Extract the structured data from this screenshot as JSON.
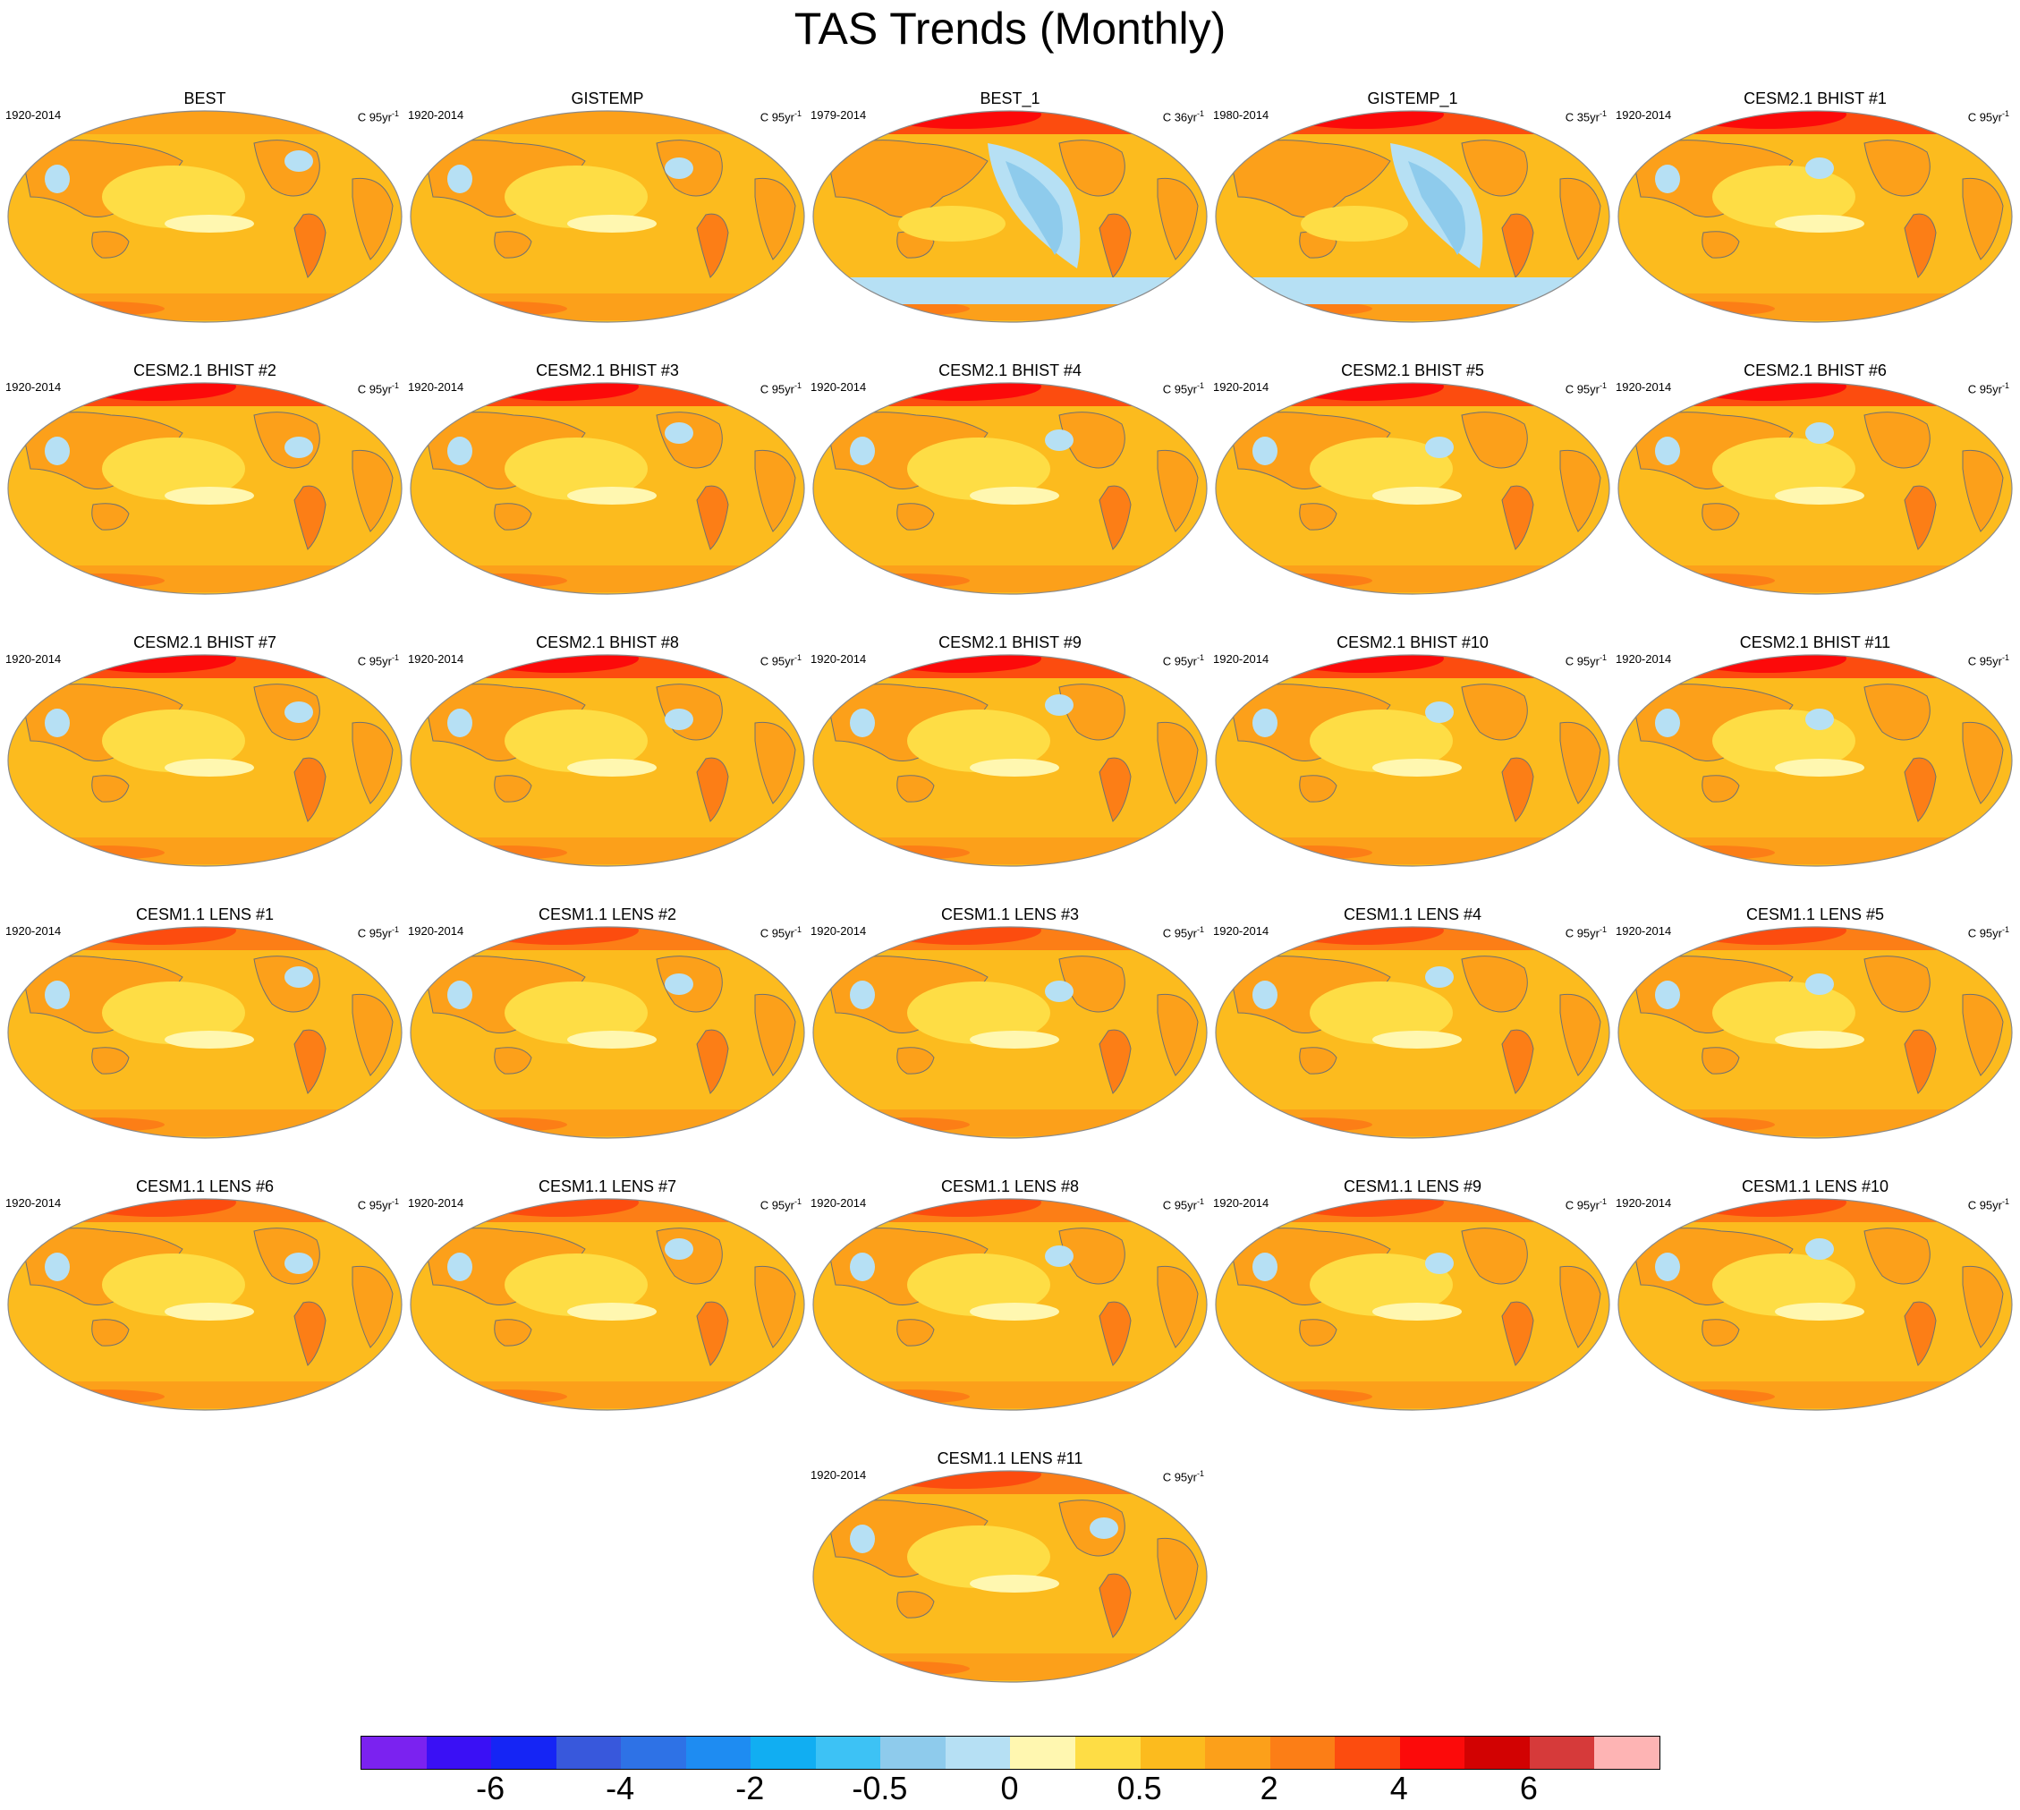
{
  "title": "TAS Trends (Monthly)",
  "panels": [
    {
      "name": "BEST",
      "period": "1920-2014",
      "units": "C 95yr",
      "units_exp": "-1",
      "style": "obs"
    },
    {
      "name": "GISTEMP",
      "period": "1920-2014",
      "units": "C 95yr",
      "units_exp": "-1",
      "style": "obs"
    },
    {
      "name": "BEST_1",
      "period": "1979-2014",
      "units": "C 36yr",
      "units_exp": "-1",
      "style": "obs_recent"
    },
    {
      "name": "GISTEMP_1",
      "period": "1980-2014",
      "units": "C 35yr",
      "units_exp": "-1",
      "style": "obs_recent"
    },
    {
      "name": "CESM2.1 BHIST #1",
      "period": "1920-2014",
      "units": "C 95yr",
      "units_exp": "-1",
      "style": "model_hot"
    },
    {
      "name": "CESM2.1 BHIST #2",
      "period": "1920-2014",
      "units": "C 95yr",
      "units_exp": "-1",
      "style": "model_hot"
    },
    {
      "name": "CESM2.1 BHIST #3",
      "period": "1920-2014",
      "units": "C 95yr",
      "units_exp": "-1",
      "style": "model_hot"
    },
    {
      "name": "CESM2.1 BHIST #4",
      "period": "1920-2014",
      "units": "C 95yr",
      "units_exp": "-1",
      "style": "model_hot"
    },
    {
      "name": "CESM2.1 BHIST #5",
      "period": "1920-2014",
      "units": "C 95yr",
      "units_exp": "-1",
      "style": "model_hot"
    },
    {
      "name": "CESM2.1 BHIST #6",
      "period": "1920-2014",
      "units": "C 95yr",
      "units_exp": "-1",
      "style": "model_hot"
    },
    {
      "name": "CESM2.1 BHIST #7",
      "period": "1920-2014",
      "units": "C 95yr",
      "units_exp": "-1",
      "style": "model_hot"
    },
    {
      "name": "CESM2.1 BHIST #8",
      "period": "1920-2014",
      "units": "C 95yr",
      "units_exp": "-1",
      "style": "model_hot"
    },
    {
      "name": "CESM2.1 BHIST #9",
      "period": "1920-2014",
      "units": "C 95yr",
      "units_exp": "-1",
      "style": "model_hot"
    },
    {
      "name": "CESM2.1 BHIST #10",
      "period": "1920-2014",
      "units": "C 95yr",
      "units_exp": "-1",
      "style": "model_hot"
    },
    {
      "name": "CESM2.1 BHIST #11",
      "period": "1920-2014",
      "units": "C 95yr",
      "units_exp": "-1",
      "style": "model_hot"
    },
    {
      "name": "CESM1.1 LENS #1",
      "period": "1920-2014",
      "units": "C 95yr",
      "units_exp": "-1",
      "style": "model"
    },
    {
      "name": "CESM1.1 LENS #2",
      "period": "1920-2014",
      "units": "C 95yr",
      "units_exp": "-1",
      "style": "model"
    },
    {
      "name": "CESM1.1 LENS #3",
      "period": "1920-2014",
      "units": "C 95yr",
      "units_exp": "-1",
      "style": "model"
    },
    {
      "name": "CESM1.1 LENS #4",
      "period": "1920-2014",
      "units": "C 95yr",
      "units_exp": "-1",
      "style": "model"
    },
    {
      "name": "CESM1.1 LENS #5",
      "period": "1920-2014",
      "units": "C 95yr",
      "units_exp": "-1",
      "style": "model"
    },
    {
      "name": "CESM1.1 LENS #6",
      "period": "1920-2014",
      "units": "C 95yr",
      "units_exp": "-1",
      "style": "model"
    },
    {
      "name": "CESM1.1 LENS #7",
      "period": "1920-2014",
      "units": "C 95yr",
      "units_exp": "-1",
      "style": "model"
    },
    {
      "name": "CESM1.1 LENS #8",
      "period": "1920-2014",
      "units": "C 95yr",
      "units_exp": "-1",
      "style": "model"
    },
    {
      "name": "CESM1.1 LENS #9",
      "period": "1920-2014",
      "units": "C 95yr",
      "units_exp": "-1",
      "style": "model"
    },
    {
      "name": "CESM1.1 LENS #10",
      "period": "1920-2014",
      "units": "C 95yr",
      "units_exp": "-1",
      "style": "model"
    },
    {
      "name": "CESM1.1 LENS #11",
      "period": "1920-2014",
      "units": "C 95yr",
      "units_exp": "-1",
      "style": "model"
    }
  ],
  "colorbar": {
    "colors": [
      "#7b22f0",
      "#3a10f5",
      "#1525f5",
      "#3858dc",
      "#2e72e6",
      "#1e8cf2",
      "#11aef2",
      "#3dc2f5",
      "#8ecbec",
      "#b6e0f4",
      "#fff7b0",
      "#fedd45",
      "#fcbb1e",
      "#fca01a",
      "#fc7e16",
      "#fc4c0f",
      "#fc0a0a",
      "#d20202",
      "#d63a3a",
      "#feb4b4"
    ],
    "tick_labels": [
      "-6",
      "-4",
      "-2",
      "-0.5",
      "0",
      "0.5",
      "2",
      "4",
      "6"
    ],
    "tick_boundaries": [
      2,
      4,
      6,
      8,
      10,
      12,
      14,
      16,
      18
    ]
  },
  "palette": {
    "ocean_base": "#fcbb1e",
    "light_yellow": "#fedd45",
    "pale": "#fff7b0",
    "orange": "#fca01a",
    "dark_orange": "#fc7e16",
    "red_orange": "#fc4c0f",
    "red": "#fc0a0a",
    "light_blue": "#b6e0f4",
    "blue": "#8ecbec",
    "coast": "#707070"
  }
}
